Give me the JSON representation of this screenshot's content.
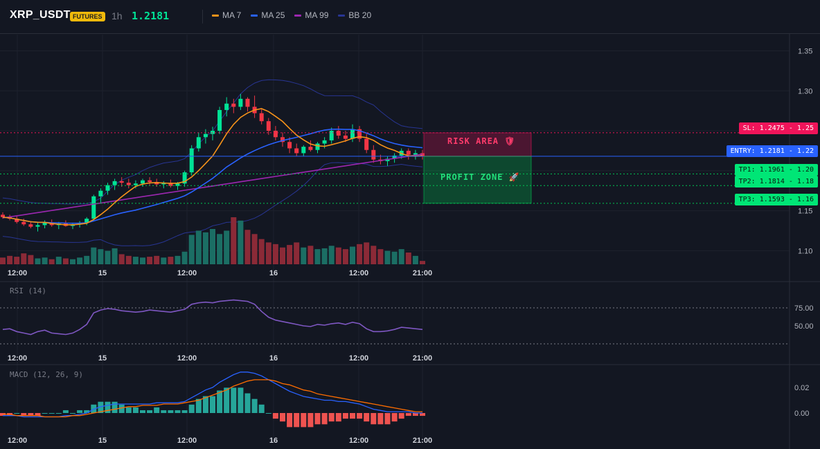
{
  "header": {
    "symbol": "XRP_USDT",
    "badge": "FUTURES",
    "timeframe": "1h",
    "last_price": "1.2181"
  },
  "legend": [
    {
      "label": "MA 7",
      "color": "#f7931a"
    },
    {
      "label": "MA 25",
      "color": "#2962ff"
    },
    {
      "label": "MA 99",
      "color": "#9c27b0"
    },
    {
      "label": "BB 20",
      "color": "#283593"
    }
  ],
  "colors": {
    "up": "#00e396",
    "down": "#f23645",
    "vol_up": "#1b6e64",
    "vol_down": "#8b2a37"
  },
  "zones": {
    "risk_label": "RISK AREA 🛡",
    "profit_label": "PROFIT ZONE 🚀"
  },
  "levels": {
    "sl": {
      "tag": "SL: 1.2475 - 1.25",
      "price": 1.2475
    },
    "entry": {
      "tag": "ENTRY: 1.2181 - 1.22",
      "price": 1.2181
    },
    "tp1": {
      "tag": "TP1: 1.1961 - 1.20",
      "price": 1.1961
    },
    "tp2": {
      "tag": "TP2: 1.1814 - 1.18",
      "price": 1.1814
    },
    "tp3": {
      "tag": "TP3: 1.1593 - 1.16",
      "price": 1.1593
    }
  },
  "price_axis": [
    "1.35",
    "1.30",
    "1.25",
    "1.20",
    "1.15",
    "1.10"
  ],
  "time_axis": [
    "12:00",
    "15",
    "12:00",
    "16",
    "12:00",
    "21:00"
  ],
  "rsi": {
    "label": "RSI (14)",
    "ticks": [
      "75.00",
      "50.00"
    ]
  },
  "macd": {
    "label": "MACD (12, 26, 9)",
    "ticks": [
      "0.02",
      "0.00"
    ]
  },
  "chart_data": {
    "type": "candlestick",
    "interval": "1h",
    "ohlc": [
      [
        1.145,
        1.148,
        1.14,
        1.142
      ],
      [
        1.142,
        1.145,
        1.138,
        1.14
      ],
      [
        1.14,
        1.143,
        1.134,
        1.136
      ],
      [
        1.136,
        1.14,
        1.131,
        1.133
      ],
      [
        1.133,
        1.137,
        1.128,
        1.13
      ],
      [
        1.13,
        1.136,
        1.124,
        1.132
      ],
      [
        1.132,
        1.138,
        1.128,
        1.135
      ],
      [
        1.135,
        1.139,
        1.13,
        1.132
      ],
      [
        1.132,
        1.136,
        1.127,
        1.134
      ],
      [
        1.134,
        1.138,
        1.13,
        1.131
      ],
      [
        1.131,
        1.135,
        1.127,
        1.133
      ],
      [
        1.133,
        1.137,
        1.129,
        1.135
      ],
      [
        1.135,
        1.142,
        1.132,
        1.14
      ],
      [
        1.14,
        1.17,
        1.138,
        1.168
      ],
      [
        1.168,
        1.178,
        1.16,
        1.175
      ],
      [
        1.175,
        1.185,
        1.17,
        1.182
      ],
      [
        1.182,
        1.19,
        1.176,
        1.187
      ],
      [
        1.187,
        1.192,
        1.18,
        1.185
      ],
      [
        1.185,
        1.19,
        1.178,
        1.182
      ],
      [
        1.182,
        1.188,
        1.178,
        1.184
      ],
      [
        1.184,
        1.19,
        1.18,
        1.188
      ],
      [
        1.188,
        1.192,
        1.182,
        1.186
      ],
      [
        1.186,
        1.19,
        1.18,
        1.183
      ],
      [
        1.183,
        1.187,
        1.178,
        1.185
      ],
      [
        1.185,
        1.189,
        1.179,
        1.181
      ],
      [
        1.181,
        1.186,
        1.176,
        1.184
      ],
      [
        1.184,
        1.2,
        1.18,
        1.198
      ],
      [
        1.198,
        1.232,
        1.194,
        1.228
      ],
      [
        1.228,
        1.248,
        1.224,
        1.242
      ],
      [
        1.242,
        1.252,
        1.234,
        1.246
      ],
      [
        1.246,
        1.255,
        1.238,
        1.25
      ],
      [
        1.25,
        1.28,
        1.246,
        1.276
      ],
      [
        1.276,
        1.292,
        1.268,
        1.284
      ],
      [
        1.284,
        1.29,
        1.272,
        1.28
      ],
      [
        1.28,
        1.296,
        1.276,
        1.29
      ],
      [
        1.29,
        1.292,
        1.274,
        1.28
      ],
      [
        1.28,
        1.294,
        1.266,
        1.272
      ],
      [
        1.272,
        1.278,
        1.258,
        1.262
      ],
      [
        1.262,
        1.266,
        1.245,
        1.25
      ],
      [
        1.25,
        1.256,
        1.238,
        1.242
      ],
      [
        1.242,
        1.248,
        1.23,
        1.236
      ],
      [
        1.236,
        1.242,
        1.222,
        1.228
      ],
      [
        1.228,
        1.234,
        1.218,
        1.222
      ],
      [
        1.222,
        1.232,
        1.218,
        1.23
      ],
      [
        1.23,
        1.238,
        1.224,
        1.226
      ],
      [
        1.226,
        1.236,
        1.222,
        1.234
      ],
      [
        1.234,
        1.242,
        1.228,
        1.238
      ],
      [
        1.238,
        1.254,
        1.234,
        1.25
      ],
      [
        1.25,
        1.256,
        1.24,
        1.244
      ],
      [
        1.244,
        1.25,
        1.236,
        1.24
      ],
      [
        1.24,
        1.258,
        1.236,
        1.252
      ],
      [
        1.252,
        1.256,
        1.236,
        1.24
      ],
      [
        1.24,
        1.246,
        1.222,
        1.226
      ],
      [
        1.226,
        1.232,
        1.21,
        1.214
      ],
      [
        1.214,
        1.22,
        1.208,
        1.212
      ],
      [
        1.212,
        1.218,
        1.206,
        1.215
      ],
      [
        1.215,
        1.222,
        1.21,
        1.219
      ],
      [
        1.219,
        1.228,
        1.215,
        1.225
      ],
      [
        1.225,
        1.228,
        1.214,
        1.22
      ],
      [
        1.22,
        1.226,
        1.214,
        1.222
      ],
      [
        1.222,
        1.226,
        1.214,
        1.218
      ]
    ],
    "volume": [
      8,
      10,
      9,
      13,
      11,
      7,
      8,
      6,
      9,
      7,
      6,
      8,
      10,
      20,
      18,
      16,
      19,
      12,
      10,
      9,
      8,
      9,
      10,
      8,
      9,
      10,
      15,
      35,
      40,
      38,
      42,
      36,
      40,
      56,
      52,
      41,
      36,
      30,
      26,
      24,
      20,
      23,
      26,
      20,
      22,
      18,
      19,
      22,
      20,
      18,
      21,
      24,
      26,
      22,
      18,
      16,
      15,
      18,
      14,
      10,
      4
    ],
    "rsi": [
      45,
      46,
      42,
      40,
      38,
      42,
      44,
      40,
      39,
      38,
      40,
      45,
      52,
      68,
      72,
      74,
      73,
      71,
      70,
      69,
      70,
      72,
      71,
      70,
      69,
      71,
      73,
      80,
      82,
      83,
      82,
      84,
      85,
      86,
      85,
      84,
      80,
      70,
      62,
      58,
      56,
      54,
      52,
      50,
      49,
      52,
      51,
      53,
      54,
      52,
      55,
      53,
      46,
      42,
      42,
      43,
      45,
      48,
      47,
      46,
      45
    ],
    "macd_line": [
      -0.002,
      -0.002,
      -0.002,
      -0.003,
      -0.003,
      -0.003,
      -0.003,
      -0.003,
      -0.003,
      -0.002,
      -0.002,
      -0.001,
      0.0,
      0.003,
      0.005,
      0.006,
      0.007,
      0.007,
      0.007,
      0.007,
      0.007,
      0.007,
      0.008,
      0.008,
      0.008,
      0.008,
      0.009,
      0.012,
      0.015,
      0.018,
      0.02,
      0.024,
      0.027,
      0.03,
      0.032,
      0.032,
      0.031,
      0.029,
      0.026,
      0.023,
      0.02,
      0.017,
      0.015,
      0.013,
      0.012,
      0.011,
      0.01,
      0.01,
      0.009,
      0.009,
      0.008,
      0.007,
      0.005,
      0.003,
      0.002,
      0.001,
      0.001,
      0.001,
      0.001,
      0.0,
      0.0
    ],
    "signal_line": [
      -0.001,
      -0.001,
      -0.002,
      -0.002,
      -0.002,
      -0.002,
      -0.003,
      -0.003,
      -0.003,
      -0.003,
      -0.002,
      -0.002,
      -0.001,
      0.0,
      0.001,
      0.002,
      0.003,
      0.004,
      0.005,
      0.005,
      0.006,
      0.006,
      0.006,
      0.007,
      0.007,
      0.007,
      0.008,
      0.009,
      0.01,
      0.012,
      0.014,
      0.016,
      0.018,
      0.021,
      0.023,
      0.025,
      0.026,
      0.026,
      0.026,
      0.025,
      0.023,
      0.022,
      0.02,
      0.018,
      0.017,
      0.015,
      0.014,
      0.013,
      0.012,
      0.011,
      0.01,
      0.009,
      0.008,
      0.007,
      0.006,
      0.005,
      0.004,
      0.003,
      0.002,
      0.001,
      0.001
    ],
    "ylim": [
      1.083,
      1.366
    ]
  }
}
